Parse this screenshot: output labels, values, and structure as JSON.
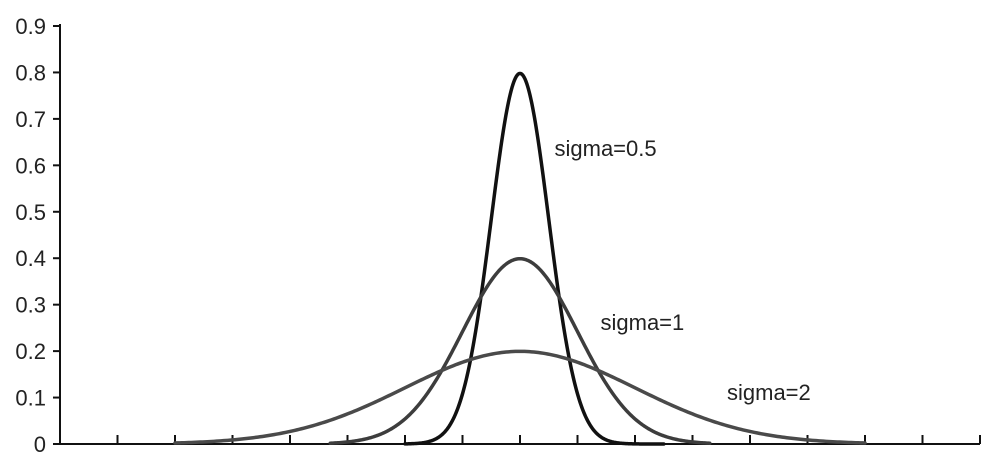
{
  "chart_data": {
    "type": "line",
    "title": "",
    "xlabel": "",
    "ylabel": "",
    "xlim": [
      -8,
      8
    ],
    "ylim": [
      0,
      0.9
    ],
    "x_tick_count": 16,
    "yticks": [
      "0",
      "0.1",
      "0.2",
      "0.3",
      "0.4",
      "0.5",
      "0.6",
      "0.7",
      "0.8",
      "0.9"
    ],
    "grid": false,
    "series": [
      {
        "name": "sigma=0.5",
        "sigma": 0.5,
        "mu": 0,
        "x_range": [
          -2,
          2.5
        ],
        "color": "#111111"
      },
      {
        "name": "sigma=1",
        "sigma": 1,
        "mu": 0,
        "x_range": [
          -3.3,
          3.3
        ],
        "color": "#3d3d3d"
      },
      {
        "name": "sigma=2",
        "sigma": 2,
        "mu": 0,
        "x_range": [
          -6,
          6
        ],
        "color": "#4a4a4a"
      }
    ]
  }
}
